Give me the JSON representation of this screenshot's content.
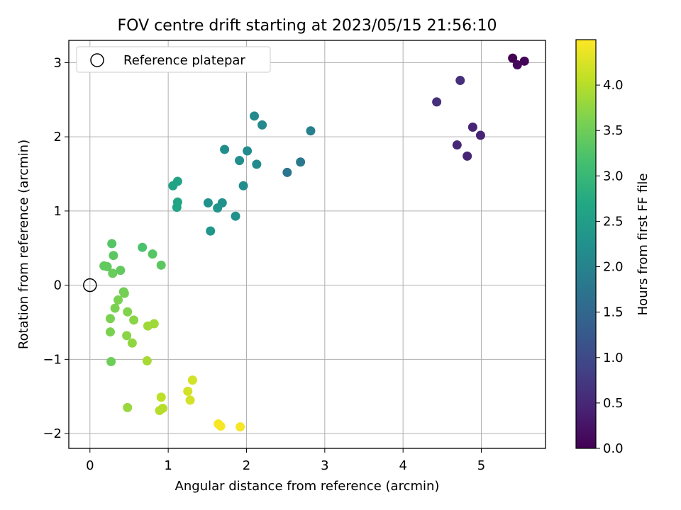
{
  "chart_data": {
    "type": "scatter",
    "title": "FOV centre drift starting at 2023/05/15 21:56:10",
    "xlabel": "Angular distance from reference (arcmin)",
    "ylabel": "Rotation from reference (arcmin)",
    "xlim": [
      -0.27,
      5.82
    ],
    "ylim": [
      -2.2,
      3.3
    ],
    "xticks": [
      "0",
      "1",
      "2",
      "3",
      "4",
      "5"
    ],
    "xtick_values": [
      0,
      1,
      2,
      3,
      4,
      5
    ],
    "yticks": [
      "−2",
      "−1",
      "0",
      "1",
      "2",
      "3"
    ],
    "ytick_values": [
      -2,
      -1,
      0,
      1,
      2,
      3
    ],
    "grid": true,
    "legend": {
      "placement": "top-left",
      "entries": [
        "Reference platepar"
      ]
    },
    "reference_point": {
      "x": 0,
      "y": 0,
      "label": "Reference platepar"
    },
    "colorbar": {
      "label": "Hours from first FF file",
      "colormap": "viridis",
      "range": [
        0,
        4.5
      ],
      "ticks": [
        "0.0",
        "0.5",
        "1.0",
        "1.5",
        "2.0",
        "2.5",
        "3.0",
        "3.5",
        "4.0"
      ],
      "tick_values": [
        0,
        0.5,
        1.0,
        1.5,
        2.0,
        2.5,
        3.0,
        3.5,
        4.0
      ]
    },
    "points": [
      {
        "x": 5.4,
        "y": 3.06,
        "hours": 0.0
      },
      {
        "x": 5.55,
        "y": 3.02,
        "hours": 0.05
      },
      {
        "x": 5.46,
        "y": 2.97,
        "hours": 0.1
      },
      {
        "x": 4.73,
        "y": 2.76,
        "hours": 0.6
      },
      {
        "x": 4.43,
        "y": 2.47,
        "hours": 0.6
      },
      {
        "x": 4.89,
        "y": 2.13,
        "hours": 0.45
      },
      {
        "x": 4.99,
        "y": 2.02,
        "hours": 0.45
      },
      {
        "x": 4.69,
        "y": 1.89,
        "hours": 0.5
      },
      {
        "x": 4.82,
        "y": 1.74,
        "hours": 0.45
      },
      {
        "x": 2.82,
        "y": 2.08,
        "hours": 1.95
      },
      {
        "x": 2.69,
        "y": 1.66,
        "hours": 1.8
      },
      {
        "x": 2.52,
        "y": 1.52,
        "hours": 1.75
      },
      {
        "x": 2.1,
        "y": 2.28,
        "hours": 2.1
      },
      {
        "x": 2.2,
        "y": 2.16,
        "hours": 2.1
      },
      {
        "x": 1.72,
        "y": 1.83,
        "hours": 2.2
      },
      {
        "x": 2.01,
        "y": 1.81,
        "hours": 2.15
      },
      {
        "x": 1.91,
        "y": 1.68,
        "hours": 2.2
      },
      {
        "x": 2.13,
        "y": 1.63,
        "hours": 2.15
      },
      {
        "x": 1.96,
        "y": 1.34,
        "hours": 2.2
      },
      {
        "x": 1.51,
        "y": 1.11,
        "hours": 2.25
      },
      {
        "x": 1.69,
        "y": 1.11,
        "hours": 2.25
      },
      {
        "x": 1.63,
        "y": 1.04,
        "hours": 2.3
      },
      {
        "x": 1.86,
        "y": 0.93,
        "hours": 2.25
      },
      {
        "x": 1.54,
        "y": 0.73,
        "hours": 2.35
      },
      {
        "x": 1.12,
        "y": 1.4,
        "hours": 2.6
      },
      {
        "x": 1.06,
        "y": 1.34,
        "hours": 2.6
      },
      {
        "x": 1.12,
        "y": 1.12,
        "hours": 2.65
      },
      {
        "x": 1.11,
        "y": 1.05,
        "hours": 2.65
      },
      {
        "x": 0.28,
        "y": 0.56,
        "hours": 3.3
      },
      {
        "x": 0.67,
        "y": 0.51,
        "hours": 3.2
      },
      {
        "x": 0.8,
        "y": 0.42,
        "hours": 3.3
      },
      {
        "x": 0.3,
        "y": 0.4,
        "hours": 3.35
      },
      {
        "x": 0.91,
        "y": 0.27,
        "hours": 3.35
      },
      {
        "x": 0.18,
        "y": 0.26,
        "hours": 3.4
      },
      {
        "x": 0.22,
        "y": 0.25,
        "hours": 3.4
      },
      {
        "x": 0.39,
        "y": 0.2,
        "hours": 3.4
      },
      {
        "x": 0.29,
        "y": 0.16,
        "hours": 3.45
      },
      {
        "x": 0.43,
        "y": -0.09,
        "hours": 3.5
      },
      {
        "x": 0.44,
        "y": -0.11,
        "hours": 3.55
      },
      {
        "x": 0.36,
        "y": -0.2,
        "hours": 3.6
      },
      {
        "x": 0.32,
        "y": -0.31,
        "hours": 3.6
      },
      {
        "x": 0.48,
        "y": -0.36,
        "hours": 3.65
      },
      {
        "x": 0.26,
        "y": -0.45,
        "hours": 3.6
      },
      {
        "x": 0.56,
        "y": -0.47,
        "hours": 3.7
      },
      {
        "x": 0.82,
        "y": -0.52,
        "hours": 3.85
      },
      {
        "x": 0.74,
        "y": -0.55,
        "hours": 3.85
      },
      {
        "x": 0.26,
        "y": -0.63,
        "hours": 3.6
      },
      {
        "x": 0.47,
        "y": -0.68,
        "hours": 3.7
      },
      {
        "x": 0.54,
        "y": -0.78,
        "hours": 3.75
      },
      {
        "x": 0.27,
        "y": -1.03,
        "hours": 3.5
      },
      {
        "x": 0.73,
        "y": -1.02,
        "hours": 3.9
      },
      {
        "x": 1.31,
        "y": -1.28,
        "hours": 4.2
      },
      {
        "x": 1.25,
        "y": -1.43,
        "hours": 4.2
      },
      {
        "x": 0.91,
        "y": -1.51,
        "hours": 4.05
      },
      {
        "x": 1.28,
        "y": -1.55,
        "hours": 4.2
      },
      {
        "x": 0.48,
        "y": -1.65,
        "hours": 3.8
      },
      {
        "x": 0.93,
        "y": -1.66,
        "hours": 4.0
      },
      {
        "x": 0.89,
        "y": -1.69,
        "hours": 4.0
      },
      {
        "x": 1.64,
        "y": -1.87,
        "hours": 4.45
      },
      {
        "x": 1.67,
        "y": -1.9,
        "hours": 4.45
      },
      {
        "x": 1.92,
        "y": -1.91,
        "hours": 4.45
      }
    ]
  }
}
